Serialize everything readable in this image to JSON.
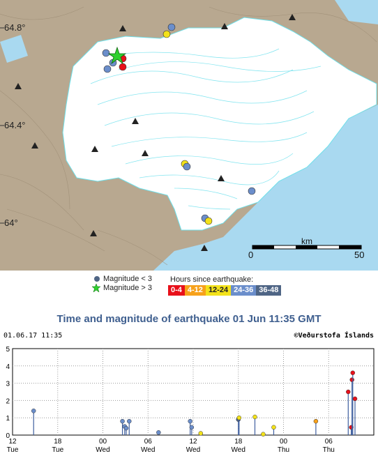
{
  "map": {
    "lat_labels": [
      "64.8°",
      "64.4°",
      "64°"
    ],
    "scale": {
      "unit": "km",
      "start": "0",
      "end": "50"
    }
  },
  "legend": {
    "mag_small": "Magnitude < 3",
    "mag_large": "Magnitude > 3",
    "hours_title": "Hours since earthquake:",
    "hours": [
      {
        "label": "0-4",
        "color": "#e8101a"
      },
      {
        "label": "4-12",
        "color": "#f7a11a"
      },
      {
        "label": "12-24",
        "color": "#f3e21a"
      },
      {
        "label": "24-36",
        "color": "#6b8ecb"
      },
      {
        "label": "36-48",
        "color": "#4f6585"
      }
    ]
  },
  "title": "Time and magnitude of earthquake   01 Jun 11:35 GMT",
  "plot_header": {
    "left": "01.06.17 11:35",
    "right": "©Veðurstofa Íslands"
  },
  "chart_data": {
    "type": "scatter",
    "y_ticks": [
      "0",
      "1",
      "2",
      "3",
      "4",
      "5"
    ],
    "ylim": [
      0,
      5
    ],
    "x_ticks": [
      {
        "t": "12",
        "d": "Tue"
      },
      {
        "t": "18",
        "d": "Tue"
      },
      {
        "t": "00",
        "d": "Wed"
      },
      {
        "t": "06",
        "d": "Wed"
      },
      {
        "t": "12",
        "d": "Wed"
      },
      {
        "t": "18",
        "d": "Wed"
      },
      {
        "t": "00",
        "d": "Thu"
      },
      {
        "t": "06",
        "d": "Thu"
      }
    ],
    "points": [
      {
        "h": 2.8,
        "m": 1.4,
        "c": "#6b8ecb"
      },
      {
        "h": 14.6,
        "m": 0.8,
        "c": "#6b8ecb"
      },
      {
        "h": 14.9,
        "m": 0.5,
        "c": "#6b8ecb"
      },
      {
        "h": 15.1,
        "m": 0.4,
        "c": "#6b8ecb"
      },
      {
        "h": 15.5,
        "m": 0.8,
        "c": "#6b8ecb"
      },
      {
        "h": 19.4,
        "m": 0.15,
        "c": "#6b8ecb"
      },
      {
        "h": 23.6,
        "m": 0.8,
        "c": "#6b8ecb"
      },
      {
        "h": 23.8,
        "m": 0.45,
        "c": "#6b8ecb"
      },
      {
        "h": 25.0,
        "m": 0.1,
        "c": "#f3e21a"
      },
      {
        "h": 30.0,
        "m": 0.9,
        "c": "#4f6585"
      },
      {
        "h": 30.1,
        "m": 1.0,
        "c": "#f3e21a"
      },
      {
        "h": 32.2,
        "m": 1.05,
        "c": "#f3e21a"
      },
      {
        "h": 33.3,
        "m": 0.05,
        "c": "#f3e21a"
      },
      {
        "h": 34.7,
        "m": 0.45,
        "c": "#f3e21a"
      },
      {
        "h": 40.3,
        "m": 0.8,
        "c": "#f7a11a"
      },
      {
        "h": 44.6,
        "m": 2.5,
        "c": "#e8101a"
      },
      {
        "h": 45.0,
        "m": 0.45,
        "c": "#e8101a"
      },
      {
        "h": 45.1,
        "m": 3.2,
        "c": "#e8101a"
      },
      {
        "h": 45.2,
        "m": 3.6,
        "c": "#e8101a"
      },
      {
        "h": 45.5,
        "m": 2.1,
        "c": "#e8101a"
      }
    ]
  },
  "map_events": [
    {
      "lon": 0.44,
      "lat": 0.1,
      "c": "#6b8ecb"
    },
    {
      "lon": 0.42,
      "lat": 0.12,
      "c": "#f3e21a"
    }
  ]
}
